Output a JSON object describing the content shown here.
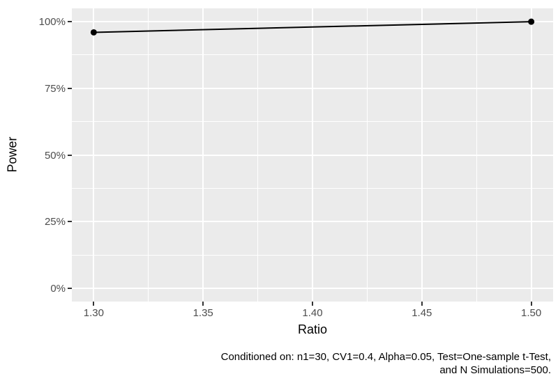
{
  "chart_data": {
    "type": "line",
    "title": "",
    "xlabel": "Ratio",
    "ylabel": "Power",
    "x": [
      1.3,
      1.5
    ],
    "series": [
      {
        "name": "Power",
        "values": [
          0.96,
          1.0
        ]
      }
    ],
    "x_domain": [
      1.29,
      1.51
    ],
    "y_domain": [
      -0.05,
      1.05
    ],
    "x_ticks": [
      1.3,
      1.35,
      1.4,
      1.45,
      1.5
    ],
    "x_tick_labels": [
      "1.30",
      "1.35",
      "1.40",
      "1.45",
      "1.50"
    ],
    "x_minor_ticks": [
      1.325,
      1.375,
      1.425,
      1.475
    ],
    "y_ticks": [
      0,
      0.25,
      0.5,
      0.75,
      1.0
    ],
    "y_tick_labels": [
      "0%",
      "25%",
      "50%",
      "75%",
      "100%"
    ],
    "y_minor_ticks": [
      0.125,
      0.375,
      0.625,
      0.875
    ],
    "grid": true,
    "legend": "none",
    "caption": {
      "align": "right",
      "lines": [
        "Conditioned on: n1=30, CV1=0.4, Alpha=0.05, Test=One-sample t-Test,",
        "and N Simulations=500."
      ]
    },
    "colors": {
      "panel_background": "#EBEBEB",
      "gridline": "#FFFFFF",
      "line": "#000000",
      "point": "#000000",
      "tick_label": "#4D4D4D",
      "axis_title": "#000000",
      "tick_mark": "#333333",
      "figure_background": "#FFFFFF"
    }
  }
}
